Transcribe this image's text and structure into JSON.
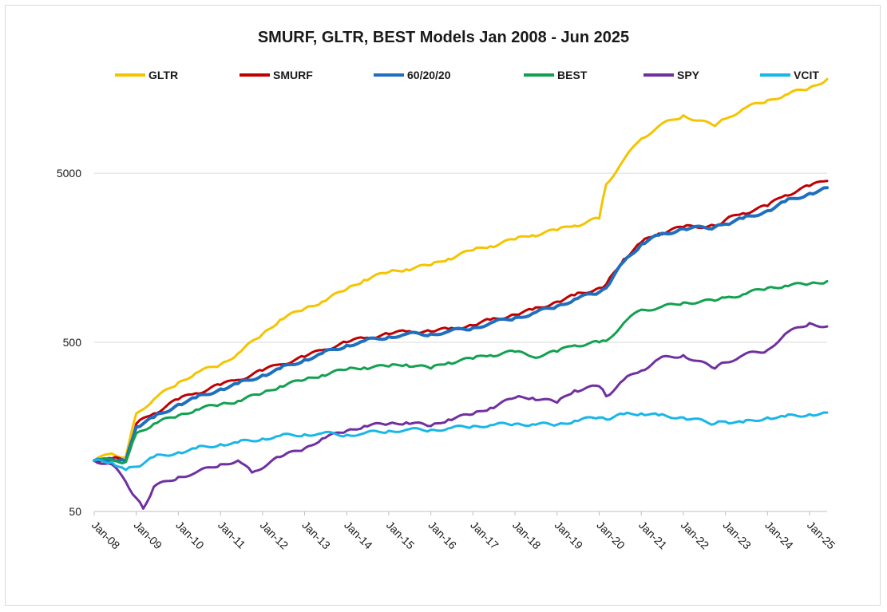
{
  "chart_data": {
    "type": "line",
    "title": "SMURF, GLTR, BEST  Models Jan 2008 - Jun 2025",
    "xlabel": "",
    "ylabel": "",
    "y_scale": "log",
    "ylim": [
      50,
      16000
    ],
    "yticks": [
      50,
      500,
      5000
    ],
    "ytick_labels": [
      "50",
      "500",
      "5000"
    ],
    "x_tick_labels": [
      "Jan-08",
      "Jan-09",
      "Jan-10",
      "Jan-11",
      "Jan-12",
      "Jan-13",
      "Jan-14",
      "Jan-15",
      "Jan-16",
      "Jan-17",
      "Jan-18",
      "Jan-19",
      "Jan-20",
      "Jan-21",
      "Jan-22",
      "Jan-23",
      "Jan-24",
      "Jan-25"
    ],
    "x_start": "2008-01",
    "x_end": "2025-06",
    "grid": "horizontal",
    "legend_position": "top",
    "series": [
      {
        "name": "GLTR",
        "color": "#f5c400",
        "x": [
          "2008-01",
          "2008-06",
          "2008-10",
          "2009-01",
          "2009-06",
          "2010-01",
          "2010-06",
          "2011-01",
          "2011-06",
          "2012-01",
          "2012-06",
          "2013-01",
          "2013-06",
          "2014-01",
          "2014-06",
          "2015-01",
          "2015-06",
          "2016-01",
          "2016-06",
          "2017-01",
          "2017-06",
          "2018-01",
          "2018-06",
          "2019-01",
          "2019-06",
          "2020-01",
          "2020-03",
          "2020-08",
          "2021-01",
          "2021-06",
          "2022-01",
          "2022-10",
          "2023-01",
          "2023-06",
          "2024-01",
          "2024-06",
          "2025-01",
          "2025-06"
        ],
        "y": [
          100,
          110,
          105,
          190,
          230,
          290,
          330,
          370,
          430,
          560,
          680,
          790,
          870,
          1030,
          1170,
          1300,
          1350,
          1430,
          1560,
          1750,
          1850,
          2030,
          2150,
          2300,
          2450,
          2700,
          4300,
          6000,
          8000,
          9500,
          11000,
          9500,
          10500,
          12000,
          13500,
          14500,
          16000,
          18000
        ]
      },
      {
        "name": "SMURF",
        "color": "#c00000",
        "x": [
          "2008-01",
          "2008-06",
          "2008-10",
          "2009-01",
          "2009-06",
          "2010-01",
          "2010-06",
          "2011-01",
          "2011-06",
          "2012-01",
          "2012-06",
          "2013-01",
          "2013-06",
          "2014-01",
          "2014-06",
          "2015-01",
          "2015-06",
          "2016-01",
          "2016-06",
          "2017-01",
          "2017-06",
          "2018-01",
          "2018-06",
          "2019-01",
          "2019-06",
          "2020-01",
          "2020-03",
          "2020-08",
          "2021-01",
          "2021-06",
          "2022-01",
          "2022-10",
          "2023-01",
          "2023-06",
          "2024-01",
          "2024-06",
          "2025-01",
          "2025-06"
        ],
        "y": [
          100,
          103,
          100,
          165,
          190,
          230,
          250,
          280,
          300,
          340,
          370,
          410,
          450,
          500,
          530,
          560,
          580,
          580,
          600,
          630,
          680,
          730,
          780,
          870,
          950,
          1050,
          1100,
          1550,
          1950,
          2200,
          2400,
          2450,
          2650,
          2900,
          3200,
          3700,
          4200,
          4500
        ]
      },
      {
        "name": "60/20/20",
        "color": "#1f6fbf",
        "x": [
          "2008-01",
          "2008-06",
          "2008-10",
          "2009-01",
          "2009-06",
          "2010-01",
          "2010-06",
          "2011-01",
          "2011-06",
          "2012-01",
          "2012-06",
          "2013-01",
          "2013-06",
          "2014-01",
          "2014-06",
          "2015-01",
          "2015-06",
          "2016-01",
          "2016-06",
          "2017-01",
          "2017-06",
          "2018-01",
          "2018-06",
          "2019-01",
          "2019-06",
          "2020-01",
          "2020-03",
          "2020-08",
          "2021-01",
          "2021-06",
          "2022-01",
          "2022-10",
          "2023-01",
          "2023-06",
          "2024-01",
          "2024-06",
          "2025-01",
          "2025-06"
        ],
        "y": [
          100,
          102,
          99,
          158,
          180,
          215,
          235,
          265,
          285,
          320,
          350,
          395,
          430,
          480,
          510,
          540,
          560,
          560,
          580,
          610,
          650,
          700,
          740,
          820,
          900,
          990,
          1050,
          1500,
          1900,
          2150,
          2350,
          2400,
          2500,
          2700,
          3000,
          3400,
          3800,
          4100
        ]
      },
      {
        "name": "BEST",
        "color": "#12a150",
        "x": [
          "2008-01",
          "2008-06",
          "2008-10",
          "2009-01",
          "2009-06",
          "2010-01",
          "2010-06",
          "2011-01",
          "2011-06",
          "2012-01",
          "2012-06",
          "2013-01",
          "2013-06",
          "2014-01",
          "2014-06",
          "2015-01",
          "2015-06",
          "2016-01",
          "2016-06",
          "2017-01",
          "2017-06",
          "2018-01",
          "2018-06",
          "2019-01",
          "2019-06",
          "2020-01",
          "2020-03",
          "2020-08",
          "2021-01",
          "2021-06",
          "2022-01",
          "2022-10",
          "2023-01",
          "2023-06",
          "2024-01",
          "2024-06",
          "2025-01",
          "2025-06"
        ],
        "y": [
          100,
          101,
          98,
          145,
          165,
          185,
          200,
          215,
          225,
          250,
          275,
          300,
          320,
          345,
          355,
          360,
          370,
          350,
          380,
          400,
          420,
          440,
          410,
          440,
          480,
          500,
          510,
          650,
          780,
          800,
          860,
          880,
          920,
          960,
          1050,
          1080,
          1110,
          1150
        ]
      },
      {
        "name": "SPY",
        "color": "#7030a0",
        "x": [
          "2008-01",
          "2008-06",
          "2008-10",
          "2009-01",
          "2009-03",
          "2009-06",
          "2010-01",
          "2010-06",
          "2011-01",
          "2011-06",
          "2011-10",
          "2012-06",
          "2013-01",
          "2013-06",
          "2014-01",
          "2014-06",
          "2015-01",
          "2015-06",
          "2016-01",
          "2016-06",
          "2017-01",
          "2017-06",
          "2018-01",
          "2018-06",
          "2019-01",
          "2019-06",
          "2020-01",
          "2020-03",
          "2020-08",
          "2021-01",
          "2021-06",
          "2022-01",
          "2022-10",
          "2023-01",
          "2023-06",
          "2024-01",
          "2024-06",
          "2025-01",
          "2025-06"
        ],
        "y": [
          100,
          95,
          75,
          60,
          52,
          70,
          80,
          85,
          95,
          100,
          85,
          105,
          118,
          135,
          150,
          160,
          165,
          168,
          160,
          175,
          188,
          205,
          235,
          235,
          220,
          260,
          275,
          240,
          300,
          340,
          400,
          420,
          350,
          380,
          420,
          450,
          560,
          650,
          620
        ]
      },
      {
        "name": "VCIT",
        "color": "#1ab6e8",
        "x": [
          "2008-01",
          "2008-06",
          "2008-10",
          "2009-01",
          "2009-06",
          "2010-01",
          "2010-06",
          "2011-01",
          "2011-06",
          "2012-01",
          "2012-06",
          "2013-01",
          "2013-06",
          "2014-01",
          "2014-06",
          "2015-01",
          "2015-06",
          "2016-01",
          "2016-06",
          "2017-01",
          "2017-06",
          "2018-01",
          "2018-06",
          "2019-01",
          "2019-06",
          "2020-01",
          "2020-03",
          "2020-08",
          "2021-01",
          "2021-06",
          "2022-01",
          "2022-10",
          "2023-01",
          "2023-06",
          "2024-01",
          "2024-06",
          "2025-01",
          "2025-06"
        ],
        "y": [
          100,
          98,
          88,
          92,
          105,
          112,
          118,
          125,
          128,
          135,
          140,
          143,
          145,
          142,
          145,
          150,
          152,
          152,
          155,
          160,
          162,
          165,
          164,
          163,
          172,
          180,
          175,
          188,
          190,
          185,
          180,
          165,
          170,
          168,
          180,
          182,
          188,
          192
        ]
      }
    ]
  }
}
